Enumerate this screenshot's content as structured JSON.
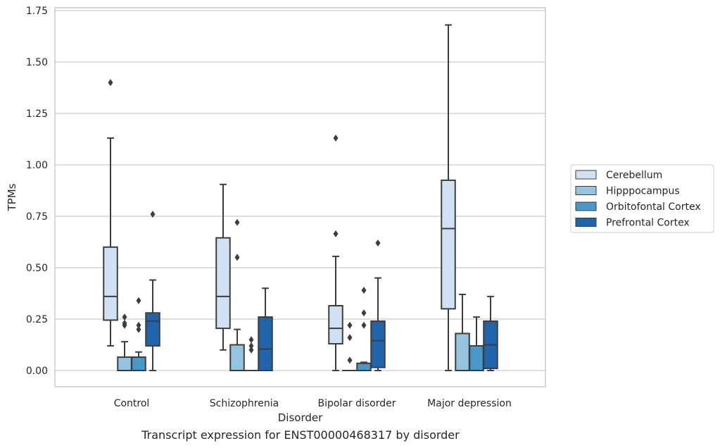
{
  "chart_data": {
    "type": "box",
    "caption": "Transcript expression for ENST00000468317 by disorder",
    "xlabel": "Disorder",
    "ylabel": "TPMs",
    "ylim": [
      -0.08,
      1.76
    ],
    "yticks": [
      0.0,
      0.25,
      0.5,
      0.75,
      1.0,
      1.25,
      1.5,
      1.75
    ],
    "ytick_labels": [
      "0.00",
      "0.25",
      "0.50",
      "0.75",
      "1.00",
      "1.25",
      "1.50",
      "1.75"
    ],
    "grid": "horizontal",
    "legend_position": "right",
    "categories": [
      "Control",
      "Schizophrenia",
      "Bipolar disorder",
      "Major depression"
    ],
    "series": [
      {
        "name": "Cerebellum",
        "color": "#d0e1f2",
        "boxes": [
          {
            "whisker_low": 0.12,
            "q1": 0.245,
            "median": 0.36,
            "q3": 0.6,
            "whisker_high": 1.13,
            "outliers": [
              1.4
            ]
          },
          {
            "whisker_low": 0.1,
            "q1": 0.205,
            "median": 0.36,
            "q3": 0.645,
            "whisker_high": 0.905,
            "outliers": []
          },
          {
            "whisker_low": 0.0,
            "q1": 0.13,
            "median": 0.205,
            "q3": 0.315,
            "whisker_high": 0.555,
            "outliers": [
              0.665,
              1.13
            ]
          },
          {
            "whisker_low": 0.0,
            "q1": 0.3,
            "median": 0.69,
            "q3": 0.925,
            "whisker_high": 1.68,
            "outliers": []
          }
        ]
      },
      {
        "name": "Hipppocampus",
        "color": "#94c4df",
        "boxes": [
          {
            "whisker_low": 0.0,
            "q1": 0.0,
            "median": 0.0,
            "q3": 0.065,
            "whisker_high": 0.14,
            "outliers": [
              0.22,
              0.23,
              0.26
            ]
          },
          {
            "whisker_low": 0.0,
            "q1": 0.0,
            "median": 0.0,
            "q3": 0.125,
            "whisker_high": 0.2,
            "outliers": [
              0.55,
              0.72
            ]
          },
          {
            "whisker_low": 0.0,
            "q1": 0.0,
            "median": 0.0,
            "q3": 0.0,
            "whisker_high": 0.0,
            "outliers": [
              0.05,
              0.16,
              0.22
            ]
          },
          {
            "whisker_low": 0.0,
            "q1": 0.0,
            "median": 0.0,
            "q3": 0.18,
            "whisker_high": 0.37,
            "outliers": []
          }
        ]
      },
      {
        "name": "Orbitofontal Cortex",
        "color": "#4a98c9",
        "boxes": [
          {
            "whisker_low": 0.0,
            "q1": 0.0,
            "median": 0.0,
            "q3": 0.065,
            "whisker_high": 0.09,
            "outliers": [
              0.2,
              0.22,
              0.34
            ]
          },
          {
            "whisker_low": 0.0,
            "q1": 0.0,
            "median": 0.0,
            "q3": 0.0,
            "whisker_high": 0.0,
            "outliers": [
              0.1,
              0.12,
              0.15
            ]
          },
          {
            "whisker_low": 0.0,
            "q1": 0.0,
            "median": 0.0,
            "q3": 0.035,
            "whisker_high": 0.04,
            "outliers": [
              0.22,
              0.28,
              0.39
            ]
          },
          {
            "whisker_low": 0.0,
            "q1": 0.0,
            "median": 0.0,
            "q3": 0.12,
            "whisker_high": 0.26,
            "outliers": []
          }
        ]
      },
      {
        "name": "Prefrontal Cortex",
        "color": "#2164ab",
        "boxes": [
          {
            "whisker_low": 0.0,
            "q1": 0.12,
            "median": 0.24,
            "q3": 0.28,
            "whisker_high": 0.44,
            "outliers": [
              0.76
            ]
          },
          {
            "whisker_low": 0.0,
            "q1": 0.0,
            "median": 0.105,
            "q3": 0.26,
            "whisker_high": 0.4,
            "outliers": []
          },
          {
            "whisker_low": 0.0,
            "q1": 0.015,
            "median": 0.145,
            "q3": 0.24,
            "whisker_high": 0.45,
            "outliers": [
              0.62
            ]
          },
          {
            "whisker_low": 0.0,
            "q1": 0.01,
            "median": 0.125,
            "q3": 0.24,
            "whisker_high": 0.36,
            "outliers": []
          }
        ]
      }
    ]
  },
  "colors": {
    "edge": "#3d3d3d",
    "grid": "#cccccc",
    "frame": "#cccccc",
    "text": "#262626"
  }
}
